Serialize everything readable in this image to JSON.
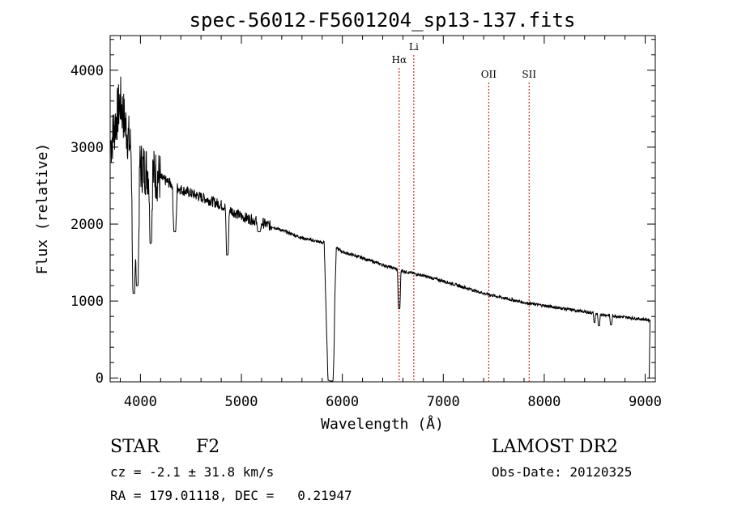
{
  "chart_data": {
    "type": "line",
    "title": "spec-56012-F5601204_sp13-137.fits",
    "xlabel": "Wavelength (Å)",
    "ylabel": "Flux (relative)",
    "xlim": [
      3700,
      9100
    ],
    "ylim": [
      -50,
      4450
    ],
    "x_ticks": [
      4000,
      5000,
      6000,
      7000,
      8000,
      9000
    ],
    "y_ticks": [
      0,
      1000,
      2000,
      3000,
      4000
    ],
    "grid": false,
    "line_color": "#000000",
    "marker_color": "#c00000",
    "spectral_lines": [
      {
        "label": "Hα",
        "wavelength": 6563
      },
      {
        "label": "Li",
        "wavelength": 6708
      },
      {
        "label": "OII",
        "wavelength": 7450
      },
      {
        "label": "SII",
        "wavelength": 7850
      }
    ],
    "continuum": [
      [
        3700,
        3000
      ],
      [
        3800,
        3600
      ],
      [
        3900,
        3000
      ],
      [
        4000,
        2750
      ],
      [
        4200,
        2600
      ],
      [
        4400,
        2450
      ],
      [
        4600,
        2350
      ],
      [
        4800,
        2250
      ],
      [
        5000,
        2100
      ],
      [
        5200,
        2020
      ],
      [
        5400,
        1920
      ],
      [
        5600,
        1820
      ],
      [
        5800,
        1760
      ],
      [
        5850,
        1760
      ],
      [
        6000,
        1640
      ],
      [
        6200,
        1560
      ],
      [
        6400,
        1470
      ],
      [
        6600,
        1390
      ],
      [
        6800,
        1330
      ],
      [
        7000,
        1260
      ],
      [
        7200,
        1180
      ],
      [
        7400,
        1100
      ],
      [
        7600,
        1040
      ],
      [
        7800,
        980
      ],
      [
        8000,
        940
      ],
      [
        8200,
        900
      ],
      [
        8400,
        860
      ],
      [
        8600,
        820
      ],
      [
        8800,
        790
      ],
      [
        9000,
        760
      ],
      [
        9050,
        750
      ]
    ],
    "absorption_features": [
      [
        3934,
        1100,
        25
      ],
      [
        3968,
        1200,
        25
      ],
      [
        4102,
        1750,
        20
      ],
      [
        4340,
        1900,
        25
      ],
      [
        4861,
        1600,
        20
      ],
      [
        5175,
        1900,
        30
      ],
      [
        5880,
        -30,
        60
      ],
      [
        5895,
        -40,
        30
      ],
      [
        6563,
        900,
        18
      ],
      [
        8542,
        680,
        15
      ],
      [
        8662,
        690,
        15
      ],
      [
        8498,
        720,
        12
      ]
    ]
  },
  "footer": {
    "object_type": "STAR",
    "spectral_class": "F2",
    "survey": "LAMOST DR2",
    "redshift": "cz = -2.1 ± 31.8 km/s",
    "obs_date": "Obs-Date: 20120325",
    "coords": "RA = 179.01118, DEC =   0.21947"
  }
}
